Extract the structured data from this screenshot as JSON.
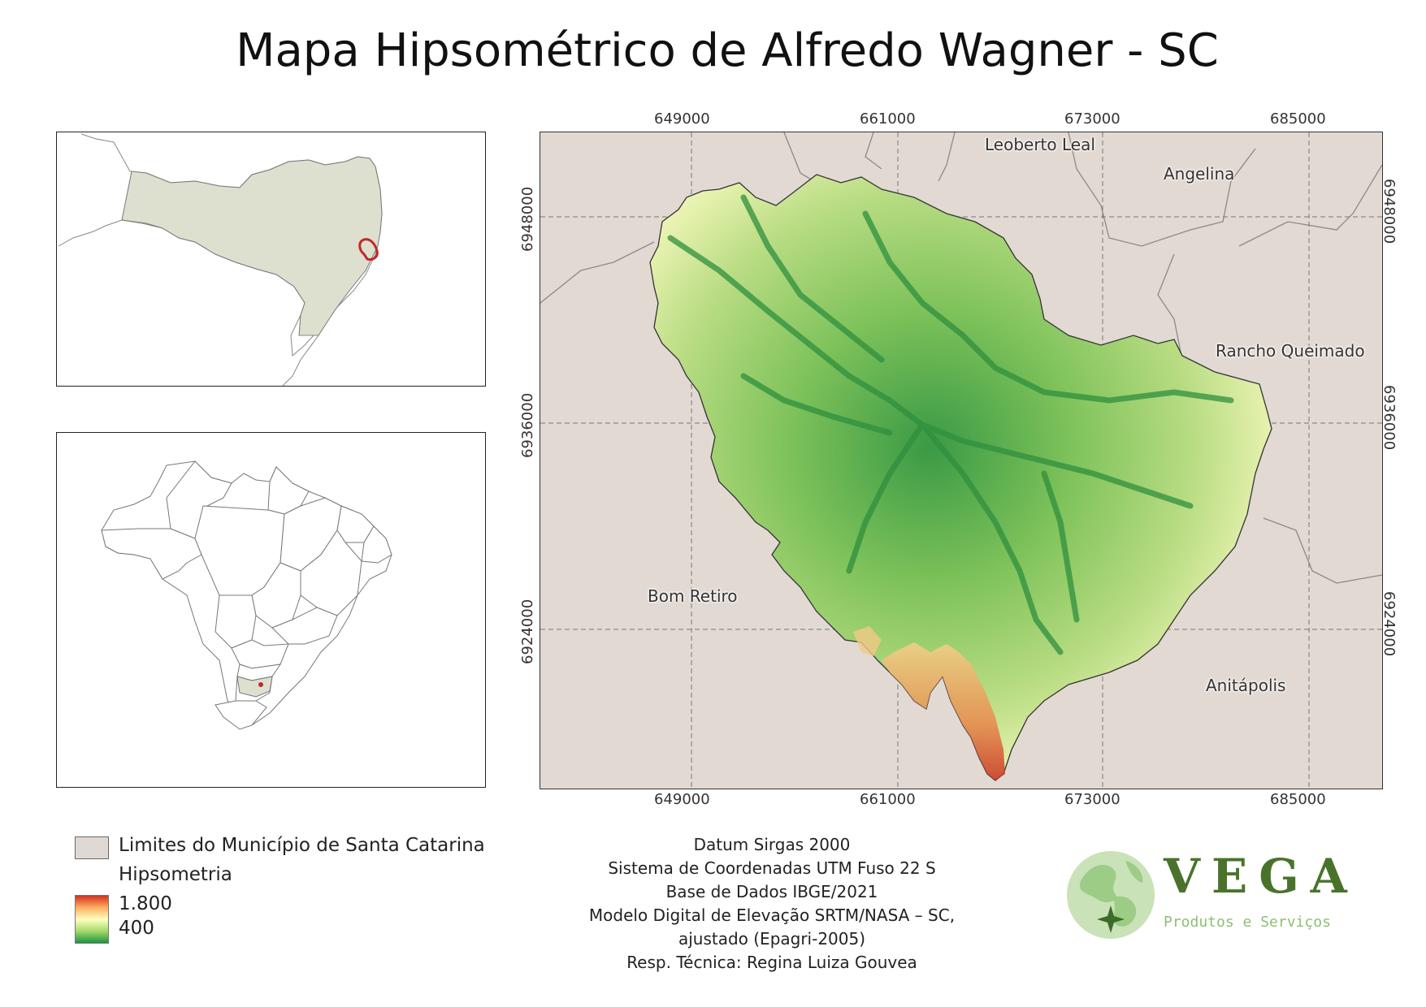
{
  "title": "Mapa Hipsométrico de Alfredo Wagner - SC",
  "main_map": {
    "x_ticks": [
      "649000",
      "661000",
      "673000",
      "685000"
    ],
    "y_ticks": [
      "6948000",
      "6936000",
      "6924000"
    ],
    "places": [
      "Leoberto Leal",
      "Angelina",
      "Rancho Queimado",
      "Bom Retiro",
      "Anitápolis"
    ],
    "colors": {
      "background": "#e2d9d3",
      "low": "#1a9641",
      "mid": "#ffffbf",
      "high": "#d7301f"
    }
  },
  "legend": {
    "municipality_label": "Limites do Município de Santa Catarina",
    "hypsometry_label": "Hipsometria",
    "max_label": "1.800",
    "min_label": "400"
  },
  "credits": [
    "Datum Sirgas 2000",
    "Sistema de Coordenadas UTM Fuso 22 S",
    "Base de Dados IBGE/2021",
    "Modelo Digital de Elevação  SRTM/NASA – SC,",
    "ajustado (Epagri-2005)",
    "Resp. Técnica: Regina Luiza Gouvea"
  ],
  "logo": {
    "name": "VEGA",
    "subtitle": "Produtos e Serviços"
  }
}
